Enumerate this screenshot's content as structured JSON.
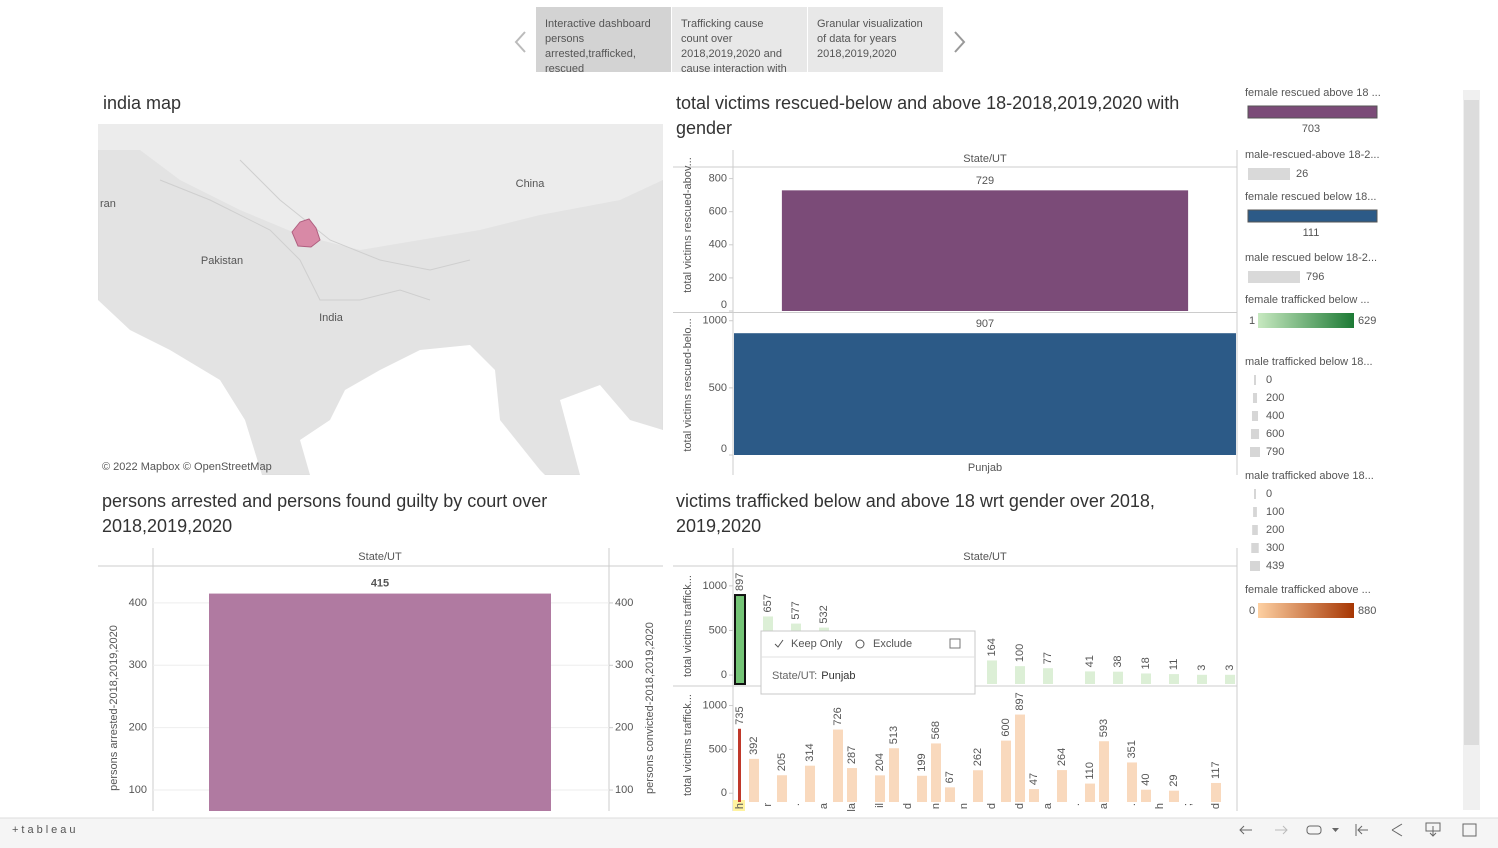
{
  "tabs": [
    [
      "Interactive dashboard",
      "persons",
      "arrested,trafficked,",
      "rescued"
    ],
    [
      "Trafficking cause",
      "count over",
      "2018,2019,2020 and",
      "cause interaction with"
    ],
    [
      "Granular visualization",
      "of data for years",
      "2018,2019,2020"
    ]
  ],
  "map": {
    "title": "india map",
    "labels": [
      "China",
      "ran",
      "Pakistan",
      "India"
    ],
    "attribution": "© 2022 Mapbox © OpenStreetMap"
  },
  "chart_data": [
    {
      "type": "bar",
      "title": [
        "total victims rescued-below and above 18-2018,2019,2020 with",
        "gender"
      ],
      "header": "State/UT",
      "categories": [
        "Punjab"
      ],
      "panes": [
        {
          "ylabel": "total victims rescued-abov...",
          "ylim": [
            0,
            870
          ],
          "yticks": [
            0,
            200,
            400,
            600,
            800
          ],
          "values": [
            729
          ],
          "color": "#7b4b78"
        },
        {
          "ylabel": "total victims rescued-belo...",
          "ylim": [
            0,
            1050
          ],
          "yticks": [
            0,
            500,
            1000
          ],
          "values": [
            907
          ],
          "color": "#2c5a87"
        }
      ]
    },
    {
      "type": "bar",
      "title": [
        "persons arrested and persons found guilty by court over",
        "2018,2019,2020"
      ],
      "header": "State/UT",
      "ylabel": "persons arrested-2018,2019,2020",
      "y2label": "persons convicted-2018,2019,2020",
      "values": [
        415
      ],
      "color": "#b07aa1",
      "ylim": [
        68,
        456
      ],
      "yticks": [
        100,
        200,
        300,
        400
      ],
      "y2lim": [
        68,
        456
      ],
      "y2ticks": [
        100,
        200,
        300,
        400
      ],
      "grid": true
    },
    {
      "type": "bar",
      "title": [
        "victims trafficked below and above 18 wrt gender over 2018,",
        "2019,2020"
      ],
      "header": "State/UT",
      "categories": [
        "h",
        null,
        "r",
        null,
        ".",
        null,
        "a",
        null,
        "la",
        null,
        "il",
        null,
        "d",
        null,
        "n",
        null,
        "n",
        null,
        "d",
        null,
        "d",
        null,
        "a",
        null,
        ".",
        null,
        "a",
        null,
        ".",
        null,
        "h",
        null,
        ";",
        null,
        "d",
        null
      ],
      "panes": [
        {
          "ylabel": "total victims traffick...",
          "ylim": [
            -100,
            1200
          ],
          "yticks": [
            0,
            500,
            1000
          ],
          "color": "#dcefd6",
          "highlight": 0,
          "highlight_color": "#74c476",
          "values": [
            897,
            null,
            657,
            null,
            577,
            null,
            532,
            null,
            null,
            null,
            null,
            null,
            null,
            null,
            null,
            null,
            null,
            null,
            164,
            null,
            100,
            null,
            77,
            null,
            null,
            41,
            null,
            38,
            null,
            18,
            null,
            11,
            null,
            3,
            null,
            3
          ]
        },
        {
          "ylabel": "total victims traffick...",
          "ylim": [
            -100,
            1200
          ],
          "yticks": [
            0,
            500,
            1000
          ],
          "color": "#f9d9bd",
          "highlight": 0,
          "highlight_color": "#c0392b",
          "values": [
            735,
            392,
            null,
            205,
            null,
            314,
            null,
            726,
            287,
            null,
            204,
            513,
            null,
            199,
            568,
            67,
            null,
            262,
            null,
            600,
            897,
            47,
            null,
            264,
            null,
            110,
            593,
            null,
            351,
            40,
            null,
            29,
            null,
            null,
            117,
            null
          ]
        }
      ]
    }
  ],
  "tooltip": {
    "actions": [
      "Keep Only",
      "Exclude"
    ],
    "field": "State/UT:",
    "value": "Punjab"
  },
  "legends": [
    {
      "title": "female rescued above 18 ...",
      "value": 703,
      "color": "#7b4b78"
    },
    {
      "title": "male-rescued-above 18-2...",
      "value": 26,
      "color": "#d9d9d9"
    },
    {
      "title": "female rescued below 18...",
      "value": 111,
      "color": "#2c5a87"
    },
    {
      "title": "male rescued below 18-2...",
      "value": 796,
      "color": "#d9d9d9"
    },
    {
      "title": "female trafficked below ...",
      "range": [
        1,
        629
      ],
      "colors": [
        "#c7e9c0",
        "#1d7a35"
      ]
    },
    {
      "title": "male trafficked below 18...",
      "sizes": [
        0,
        200,
        400,
        600,
        790
      ]
    },
    {
      "title": "male trafficked above 18...",
      "sizes": [
        0,
        100,
        200,
        300,
        439
      ]
    },
    {
      "title": "female trafficked above ...",
      "range": [
        0,
        880
      ],
      "colors": [
        "#fdd0a2",
        "#a63603"
      ]
    }
  ],
  "footer": {
    "logo": "+tableau"
  }
}
